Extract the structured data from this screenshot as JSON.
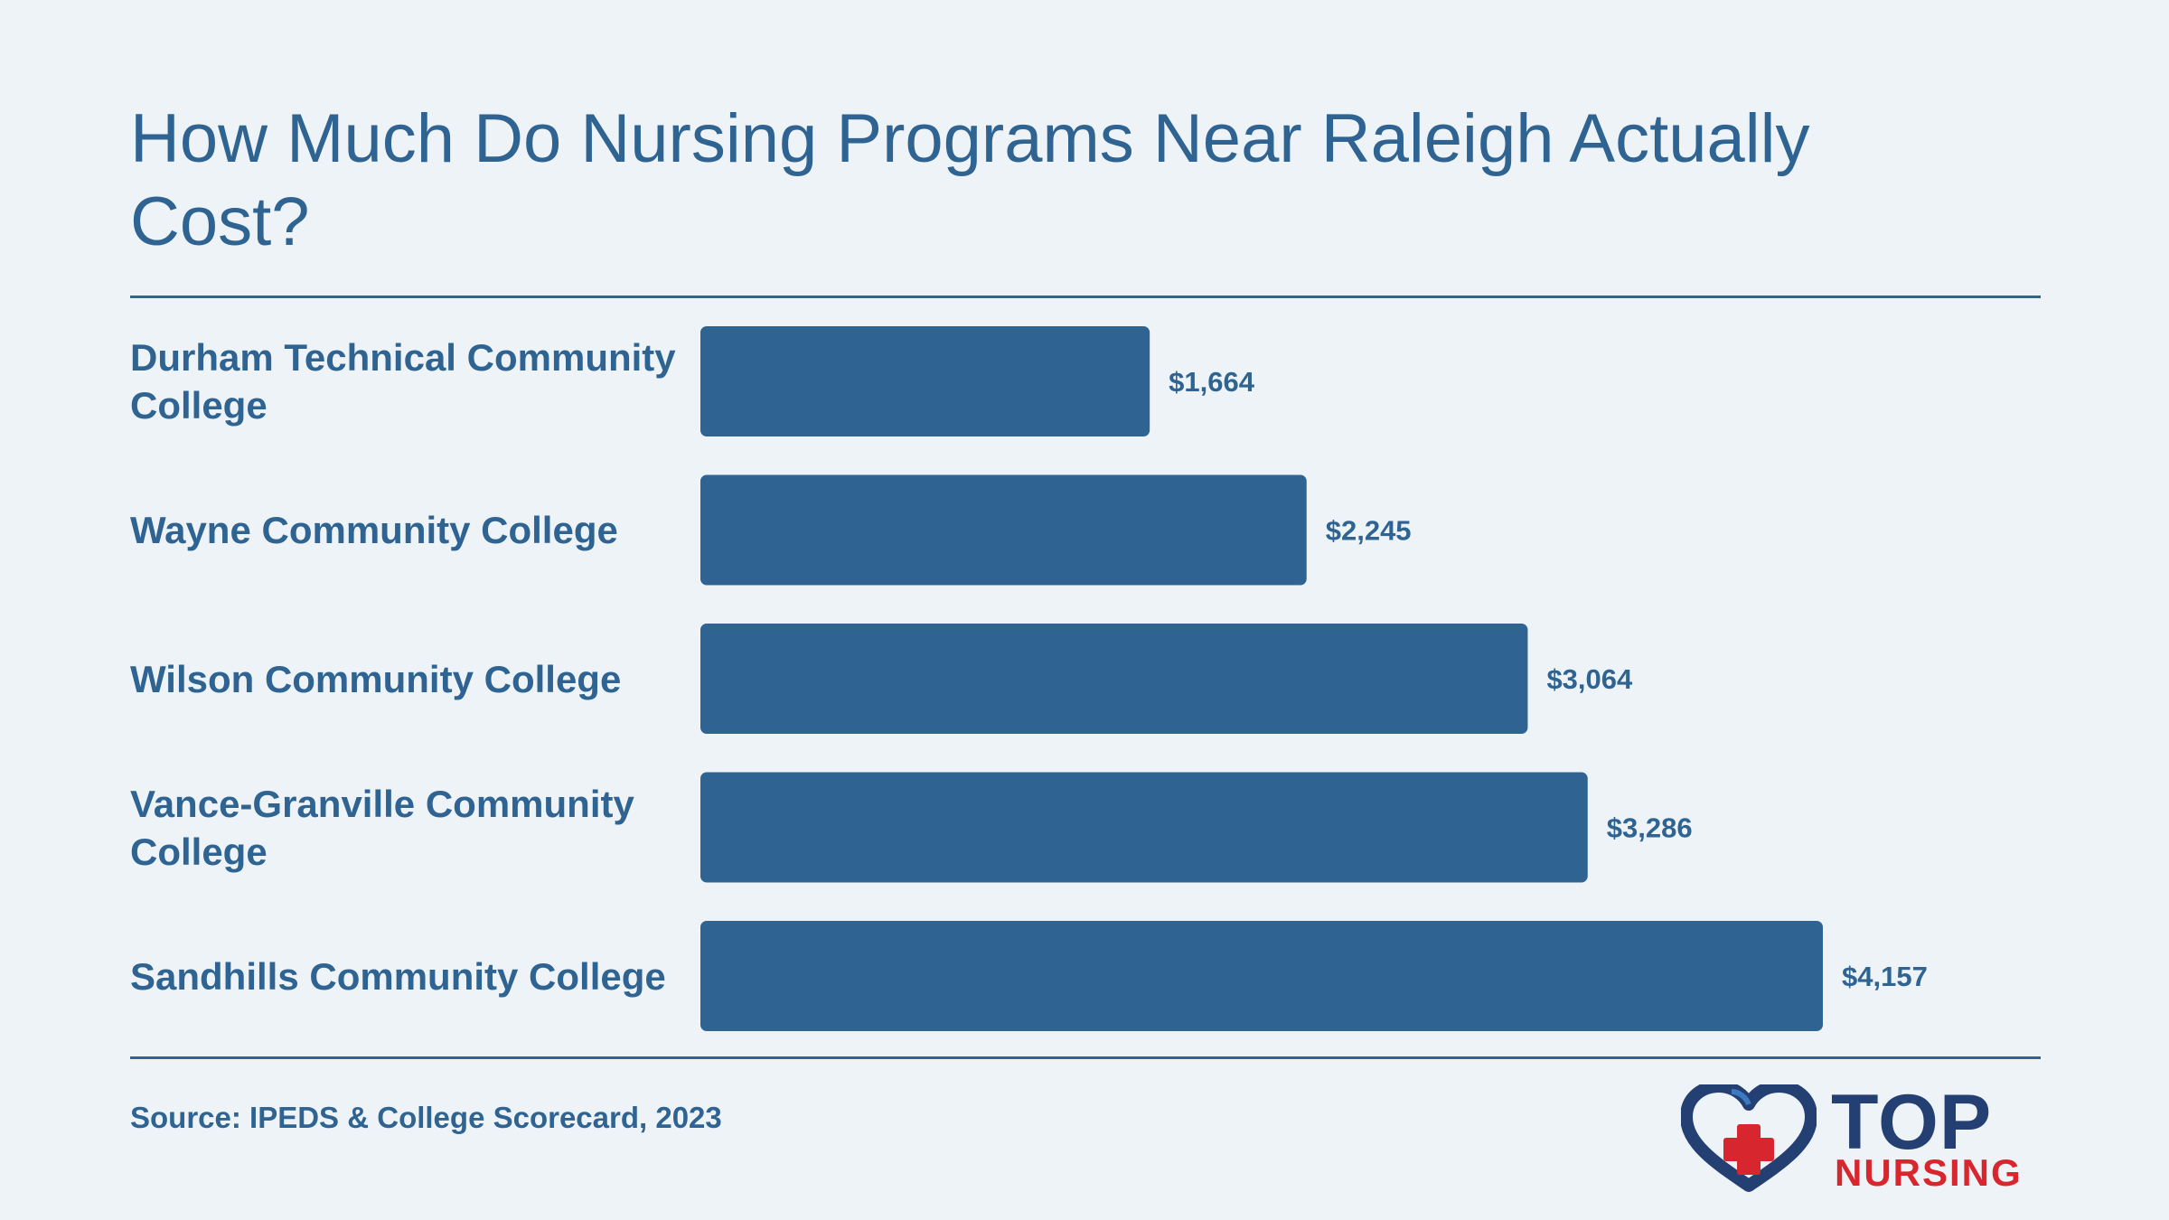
{
  "title": "How Much Do Nursing Programs Near Raleigh Actually Cost?",
  "source": "Source: IPEDS & College Scorecard, 2023",
  "logo": {
    "line1": "TOP",
    "line2": "NURSING"
  },
  "colors": {
    "bar": "#2f6492",
    "text": "#2f6492",
    "background": "#eef3f7",
    "logo_navy": "#243f72",
    "logo_red": "#d8262e"
  },
  "chart_data": {
    "type": "bar",
    "orientation": "horizontal",
    "categories": [
      "Durham Technical Community College",
      "Wayne Community College",
      "Wilson Community College",
      "Vance-Granville Community College",
      "Sandhills Community College"
    ],
    "values": [
      1664,
      2245,
      3064,
      3286,
      4157
    ],
    "value_labels": [
      "$1,664",
      "$2,245",
      "$3,064",
      "$3,286",
      "$4,157"
    ],
    "xlim": [
      0,
      4157
    ],
    "grid": false
  }
}
